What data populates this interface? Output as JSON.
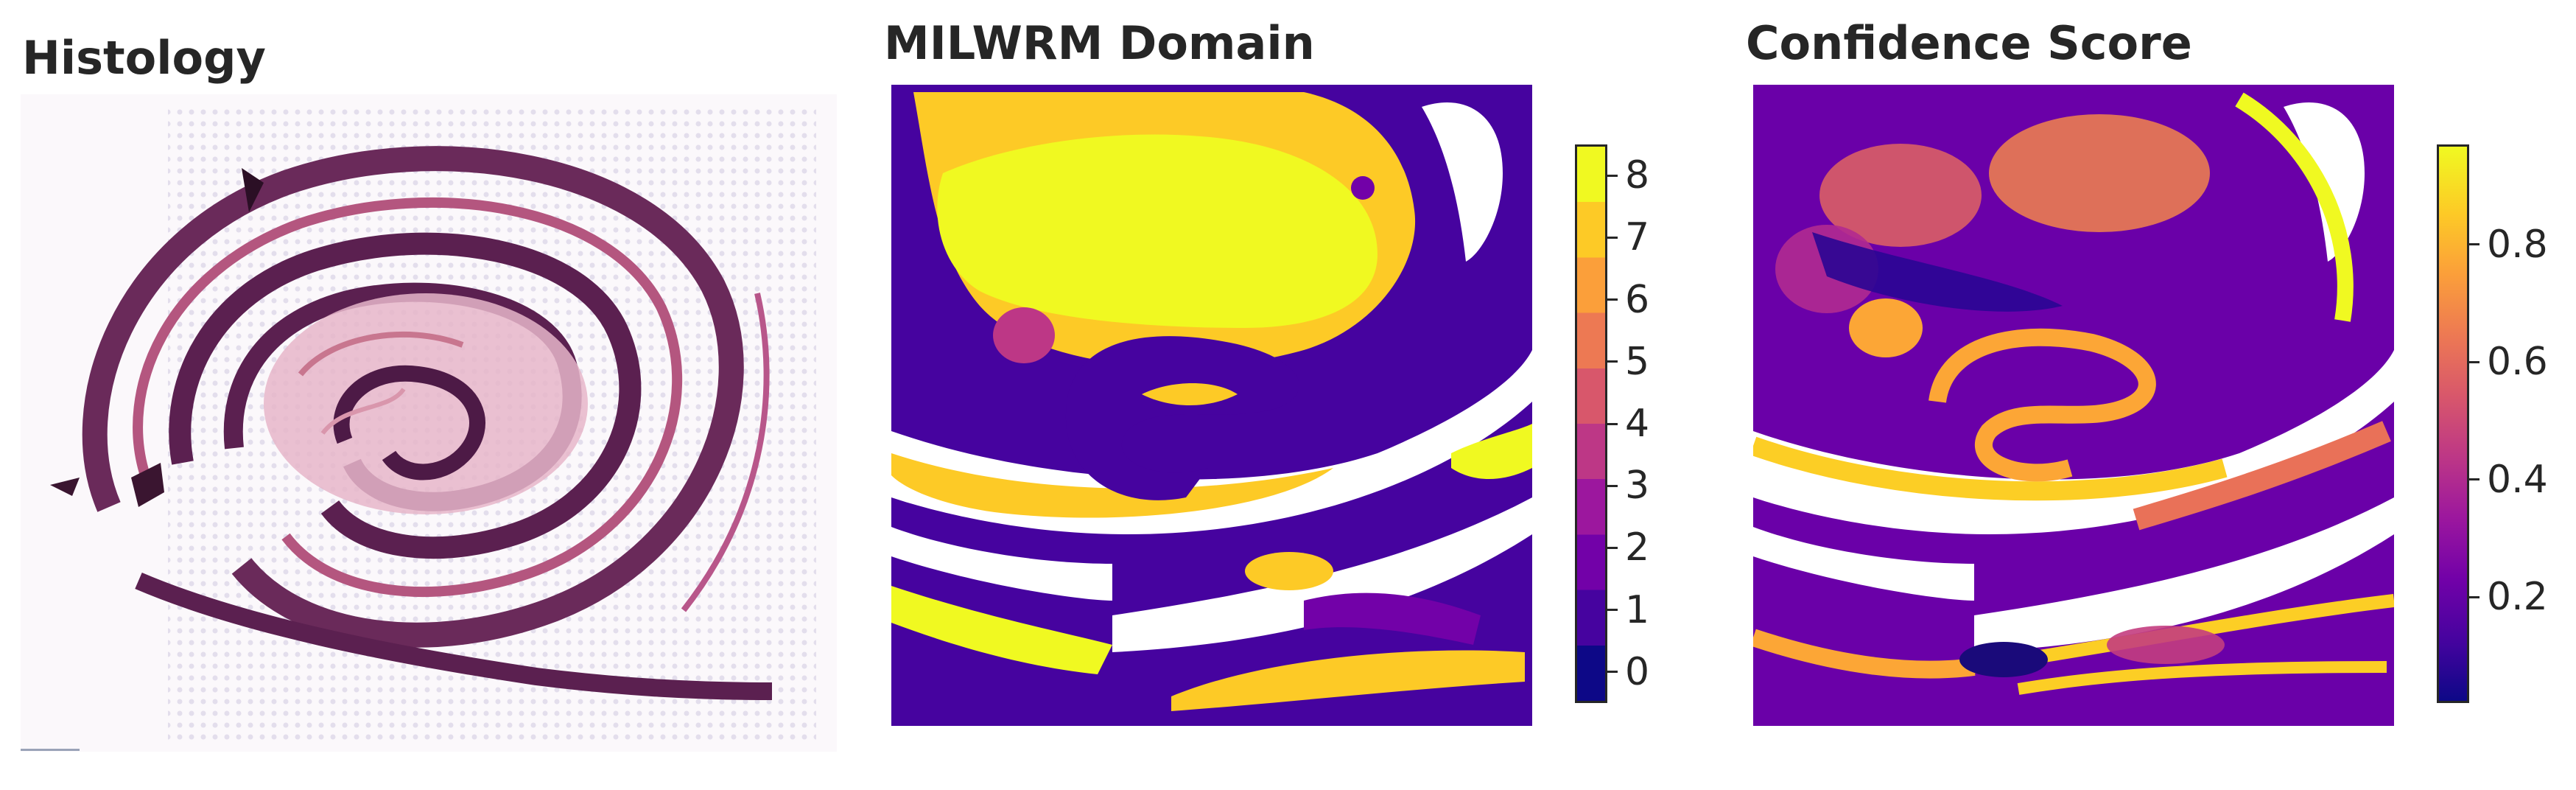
{
  "panels": {
    "histology": {
      "title": "Histology"
    },
    "domain": {
      "title": "MILWRM Domain",
      "colorbar": {
        "ticks": [
          "0",
          "1",
          "2",
          "3",
          "4",
          "5",
          "6",
          "7",
          "8"
        ],
        "colors": [
          "#0d0887",
          "#46039f",
          "#7201a8",
          "#9c179e",
          "#bd3786",
          "#d8576b",
          "#ed7953",
          "#fb9f3a",
          "#fdca26",
          "#f0f921"
        ]
      }
    },
    "confidence": {
      "title": "Confidence Score",
      "colorbar": {
        "ticks": [
          "0.2",
          "0.4",
          "0.6",
          "0.8"
        ],
        "tick_values": [
          0.2,
          0.4,
          0.6,
          0.8
        ],
        "range": [
          0.02,
          0.97
        ]
      }
    }
  },
  "colormap": "plasma"
}
